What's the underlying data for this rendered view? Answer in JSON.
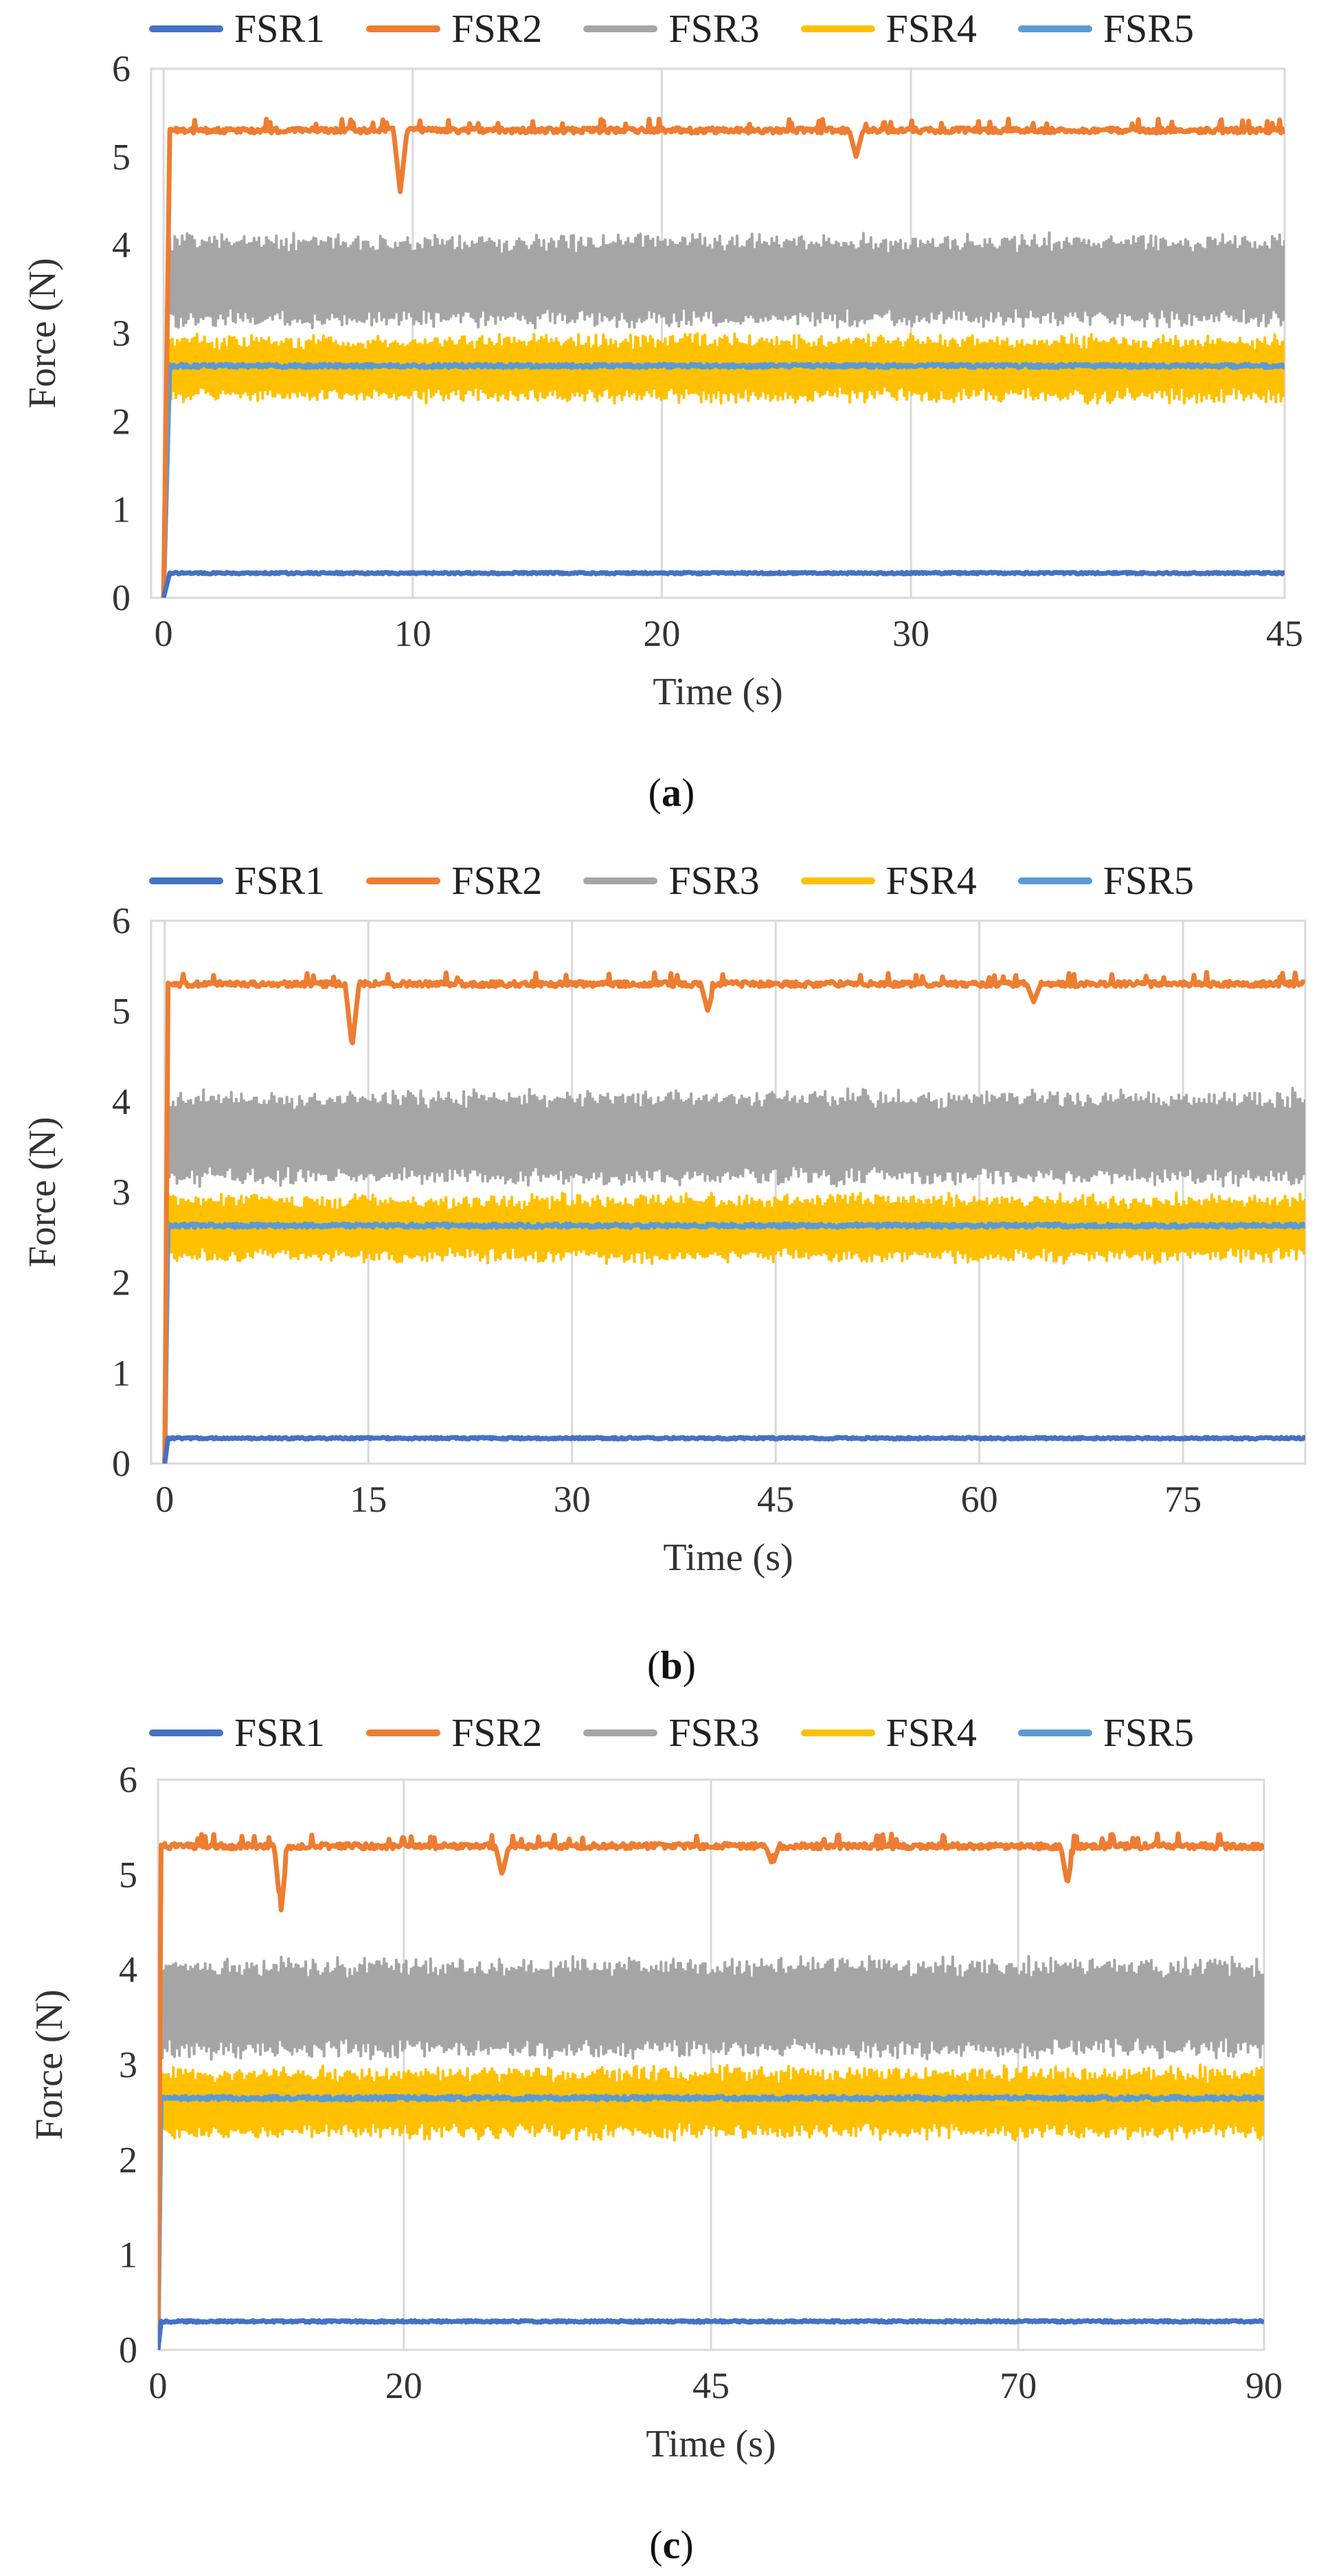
{
  "chart_data": [
    {
      "type": "line",
      "panel_label": "a",
      "xlabel": "Time (s)",
      "ylabel": "Force (N)",
      "xlim": [
        -0.5,
        45
      ],
      "ylim": [
        0,
        6
      ],
      "xticks": [
        0,
        10,
        20,
        30,
        45
      ],
      "xtick_labels": [
        "0",
        "10",
        "20",
        "30",
        "45"
      ],
      "yticks": [
        0,
        1,
        2,
        3,
        4,
        5,
        6
      ],
      "grid": "vertical",
      "legend": "top-center",
      "series": [
        {
          "name": "FSR1",
          "color": "#4472C4",
          "baseline": 0.28,
          "band": 0.0,
          "noise": 0.01
        },
        {
          "name": "FSR2",
          "color": "#ED7D31",
          "baseline": 5.3,
          "band": 0.0,
          "noise": 0.03,
          "dips": [
            [
              9.5,
              4.6
            ],
            [
              27.8,
              5.0
            ]
          ]
        },
        {
          "name": "FSR3",
          "color": "#A5A5A5",
          "baseline": 3.6,
          "band": 0.5,
          "noise": 0.05
        },
        {
          "name": "FSR4",
          "color": "#FFC000",
          "baseline": 2.6,
          "band": 0.35,
          "noise": 0.05
        },
        {
          "name": "FSR5",
          "color": "#5B9BD5",
          "baseline": 2.63,
          "band": 0.0,
          "noise": 0.02
        }
      ]
    },
    {
      "type": "line",
      "panel_label": "b",
      "xlabel": "Time (s)",
      "ylabel": "Force (N)",
      "xlim": [
        -1,
        84
      ],
      "ylim": [
        0,
        6
      ],
      "xticks": [
        0,
        15,
        30,
        45,
        60,
        75
      ],
      "xtick_labels": [
        "0",
        "15",
        "30",
        "45",
        "60",
        "75"
      ],
      "yticks": [
        0,
        1,
        2,
        3,
        4,
        5,
        6
      ],
      "grid": "vertical",
      "legend": "top-center",
      "series": [
        {
          "name": "FSR1",
          "color": "#4472C4",
          "baseline": 0.28,
          "band": 0.0,
          "noise": 0.01
        },
        {
          "name": "FSR2",
          "color": "#ED7D31",
          "baseline": 5.3,
          "band": 0.0,
          "noise": 0.03,
          "dips": [
            [
              13.8,
              4.6
            ],
            [
              40,
              5.0
            ],
            [
              64,
              5.1
            ]
          ]
        },
        {
          "name": "FSR3",
          "color": "#A5A5A5",
          "baseline": 3.6,
          "band": 0.5,
          "noise": 0.05
        },
        {
          "name": "FSR4",
          "color": "#FFC000",
          "baseline": 2.6,
          "band": 0.35,
          "noise": 0.05
        },
        {
          "name": "FSR5",
          "color": "#5B9BD5",
          "baseline": 2.63,
          "band": 0.0,
          "noise": 0.02
        }
      ]
    },
    {
      "type": "line",
      "panel_label": "c",
      "xlabel": "Time (s)",
      "ylabel": "Force (N)",
      "xlim": [
        0,
        90
      ],
      "ylim": [
        0,
        6
      ],
      "xticks": [
        0,
        20,
        45,
        70,
        90
      ],
      "xtick_labels": [
        "0",
        "20",
        "45",
        "70",
        "90"
      ],
      "yticks": [
        0,
        1,
        2,
        3,
        4,
        5,
        6
      ],
      "grid": "vertical",
      "legend": "top-center",
      "series": [
        {
          "name": "FSR1",
          "color": "#4472C4",
          "baseline": 0.3,
          "band": 0.0,
          "noise": 0.01
        },
        {
          "name": "FSR2",
          "color": "#ED7D31",
          "baseline": 5.3,
          "band": 0.0,
          "noise": 0.03,
          "dips": [
            [
              10,
              4.6
            ],
            [
              28,
              5.0
            ],
            [
              50,
              5.1
            ],
            [
              74,
              4.9
            ]
          ]
        },
        {
          "name": "FSR3",
          "color": "#A5A5A5",
          "baseline": 3.6,
          "band": 0.5,
          "noise": 0.05
        },
        {
          "name": "FSR4",
          "color": "#FFC000",
          "baseline": 2.6,
          "band": 0.35,
          "noise": 0.05
        },
        {
          "name": "FSR5",
          "color": "#5B9BD5",
          "baseline": 2.65,
          "band": 0.0,
          "noise": 0.02
        }
      ]
    }
  ],
  "captions": [
    "a",
    "b",
    "c"
  ]
}
